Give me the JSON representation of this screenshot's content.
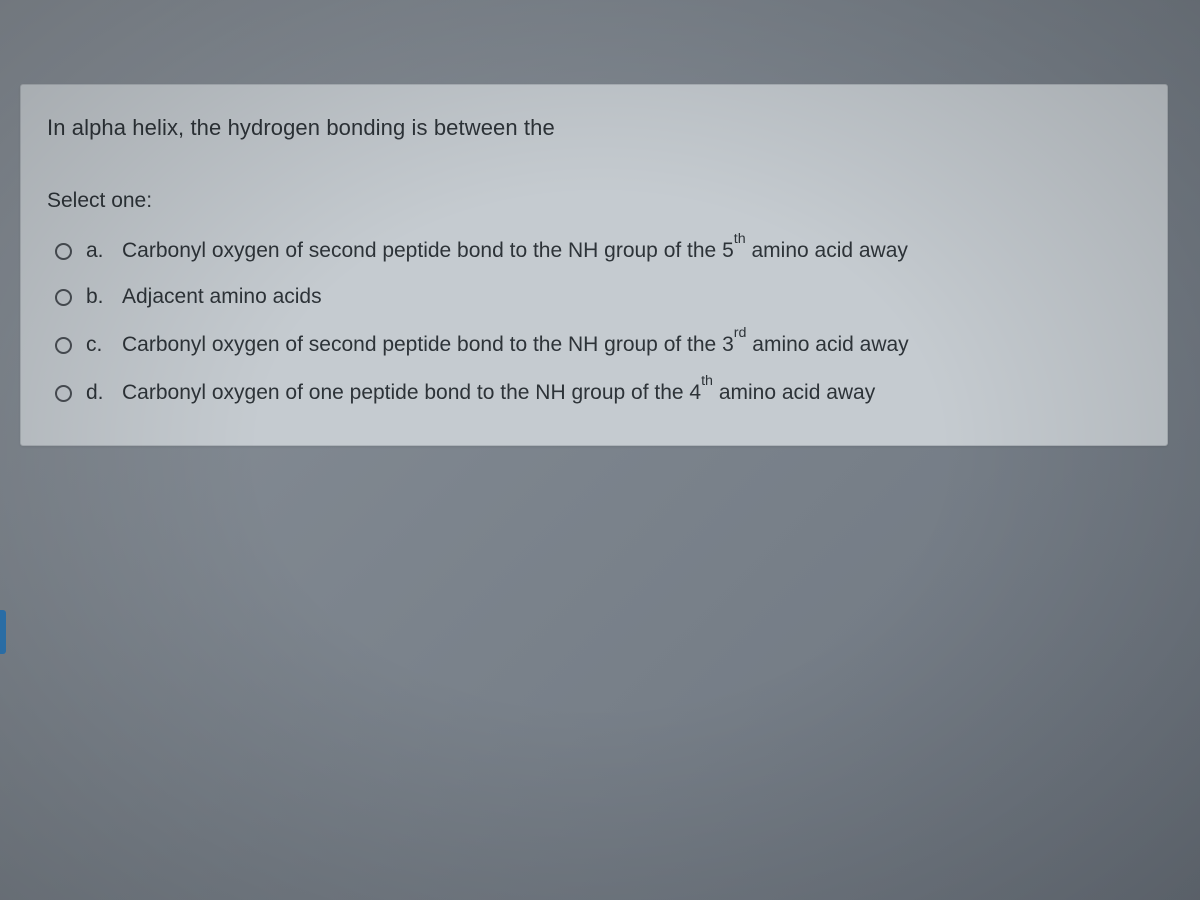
{
  "colors": {
    "page_bg_top": "#8a9199",
    "page_bg_bottom": "#6d757f",
    "card_bg": "#c5cbd0",
    "card_border": "#adb3b9",
    "text": "#2d3338",
    "radio_border": "#4a4f55",
    "side_tab": "#2f7ab8"
  },
  "typography": {
    "font_family": "Arial",
    "question_fontsize": 22,
    "option_fontsize": 21
  },
  "quiz": {
    "question": "In alpha helix, the hydrogen bonding is between the",
    "select_label": "Select one:",
    "options": [
      {
        "letter": "a.",
        "text_html": "Carbonyl oxygen of second peptide bond to the NH group of the 5<sup>th</sup> amino acid away",
        "selected": false
      },
      {
        "letter": "b.",
        "text_html": "Adjacent amino acids",
        "selected": false
      },
      {
        "letter": "c.",
        "text_html": "Carbonyl oxygen of second peptide bond to the NH group of the 3<sup>rd</sup> amino acid away",
        "selected": false
      },
      {
        "letter": "d.",
        "text_html": "Carbonyl oxygen of one peptide bond to the NH group of the 4<sup>th</sup> amino acid away",
        "selected": false
      }
    ]
  }
}
